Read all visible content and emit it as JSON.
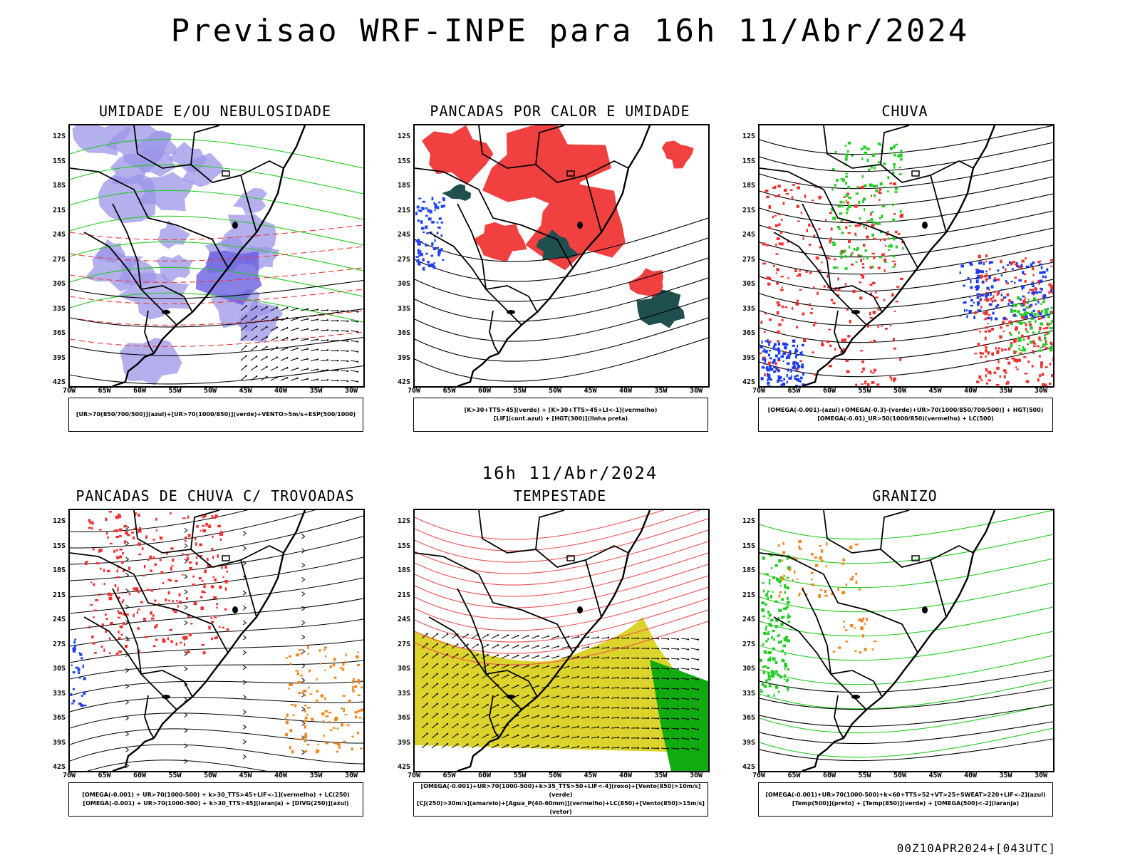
{
  "title": "Previsao WRF-INPE  para 16h 11/Abr/2024",
  "subtitle_time": "16h 11/Abr/2024",
  "footer": "00Z10APR2024+[043UTC]",
  "lat_ticks": [
    "12S",
    "15S",
    "18S",
    "21S",
    "24S",
    "27S",
    "30S",
    "33S",
    "36S",
    "39S",
    "42S"
  ],
  "lon_ticks": [
    "70W",
    "65W",
    "60W",
    "55W",
    "50W",
    "45W",
    "40W",
    "35W",
    "30W"
  ],
  "panels": [
    {
      "title": "UMIDADE E/OU NEBULOSIDADE",
      "legend": [
        "[UR>70(850/700/500)](azul)+[UR>70(1000/850)](verde)+VENTO>5m/s+ESP(500/1000)"
      ],
      "colors": {
        "fill": "#9b95e8",
        "line": "#22cc22",
        "dash": "#ee3333"
      }
    },
    {
      "title": "PANCADAS POR CALOR E UMIDADE",
      "legend": [
        "[K>30+TTS>45](verde) + [K>30+TTS>45+LI<-1](vermelho)",
        "[LIF](cont.azul) + [HGT(300)](linha preta)"
      ],
      "colors": {
        "fill": "#f04040",
        "dark": "#1f4f4f",
        "line": "#2244ee"
      }
    },
    {
      "title": "CHUVA",
      "legend": [
        "[OMEGA(-0.001)-(azul)+OMEGA(-0.3)-(verde)+UR>70(1000/850/700/500)] + HGT(500)",
        "[OMEGA(-0.01)_UR>50(1000/850)(vermelho) + LC(500)"
      ],
      "colors": {
        "red": "#f03030",
        "blue": "#1a3cf0",
        "green": "#22cc22"
      }
    },
    {
      "title": "PANCADAS DE CHUVA C/ TROVOADAS",
      "legend": [
        "[OMEGA(-0.001) + UR>70(1000-500) + k>30_TTS>45+LIF<-1](vermelho) + LC(250)",
        "[OMEGA(-0.001) + UR>70(1000-500) + k>30_TTS>45](laranja) + [DIVG(250)](azul)"
      ],
      "colors": {
        "red": "#f03030",
        "orange": "#ee8822",
        "blue": "#2244ee"
      }
    },
    {
      "title": "TEMPESTADE",
      "legend": [
        "[OMEGA(-0.001)+UR>70(1000-500)+k>35_TTS>50+LIF<-4](roxo)+[Vento(850)>10m/s](verde)",
        "[CJ(250)>30m/s](amarelo)+[Agua_P(40-60mm)](vermelho)+LC(850)+[Vento(850)>15m/s](vetor)"
      ],
      "colors": {
        "yellow": "#dcd32c",
        "red": "#f05050",
        "green": "#11aa11"
      }
    },
    {
      "title": "GRANIZO",
      "legend": [
        "[OMEGA(-0.001)+UR>70(1000-500)+k<60+TTS>52+VT>25+SWEAT>220+LIF<-2](azul)",
        "[Temp(500)](preto) + [Temp(850)](verde) + [OMEGA(500)<-2](laranja)"
      ],
      "colors": {
        "green": "#22cc22",
        "orange": "#ee8822"
      }
    }
  ]
}
